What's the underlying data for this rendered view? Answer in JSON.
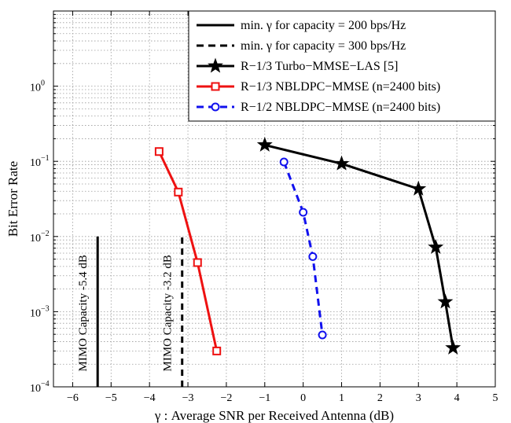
{
  "chart_data": {
    "type": "line",
    "title": "",
    "xlabel": "γ : Average SNR per Received Antenna (dB)",
    "ylabel": "Bit Error Rate",
    "xlim": [
      -6.5,
      5
    ],
    "ylim": [
      0.0001,
      10
    ],
    "yscale": "log",
    "grid": true,
    "legend_position": "top-right",
    "x_ticks": [
      -6,
      -5,
      -4,
      -3,
      -2,
      -1,
      0,
      1,
      2,
      3,
      4,
      5
    ],
    "y_ticks": [
      {
        "value": 0.0001,
        "label": "10",
        "exp": "−4"
      },
      {
        "value": 0.001,
        "label": "10",
        "exp": "−3"
      },
      {
        "value": 0.01,
        "label": "10",
        "exp": "−2"
      },
      {
        "value": 0.1,
        "label": "10",
        "exp": "−1"
      },
      {
        "value": 1,
        "label": "10",
        "exp": "0"
      }
    ],
    "capacity_lines": [
      {
        "name": "min. γ for capacity = 200 bps/Hz",
        "x": -5.35,
        "y_range": [
          0.0001,
          0.01
        ],
        "style": "solid",
        "color": "#000000",
        "label": "MIMO Capacity -5.4 dB"
      },
      {
        "name": "min. γ for capacity = 300 bps/Hz",
        "x": -3.15,
        "y_range": [
          0.0001,
          0.01
        ],
        "style": "dashed",
        "color": "#000000",
        "label": "MIMO Capacity -3.2 dB"
      }
    ],
    "series": [
      {
        "name": "R−1/3 Turbo−MMSE−LAS [5]",
        "color": "#000000",
        "marker": "star",
        "style": "solid",
        "x": [
          -1,
          1,
          3,
          3.45,
          3.7,
          3.9
        ],
        "y": [
          0.165,
          0.093,
          0.043,
          0.0072,
          0.00135,
          0.00033
        ]
      },
      {
        "name": "R−1/3 NBLDPC−MMSE (n=2400 bits)",
        "color": "#ee1111",
        "marker": "square",
        "style": "solid",
        "x": [
          -3.75,
          -3.25,
          -2.75,
          -2.25
        ],
        "y": [
          0.135,
          0.039,
          0.0045,
          0.0003
        ]
      },
      {
        "name": "R−1/2 NBLDPC−MMSE (n=2400 bits)",
        "color": "#1111ee",
        "marker": "circle",
        "style": "dashed",
        "x": [
          -0.5,
          0,
          0.25,
          0.5
        ],
        "y": [
          0.098,
          0.021,
          0.0054,
          0.00049
        ]
      }
    ],
    "colors": {
      "axis": "#000000",
      "grid": "#9a9a9a",
      "background": "#ffffff"
    }
  }
}
